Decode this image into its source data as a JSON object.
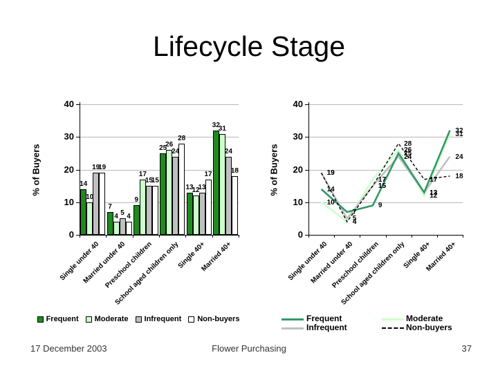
{
  "slide": {
    "title": "Lifecycle Stage"
  },
  "footer": {
    "date": "17 December 2003",
    "center": "Flower Purchasing",
    "page_number": "37"
  },
  "chart_data": [
    {
      "type": "bar",
      "title": "",
      "xlabel": "",
      "ylabel": "% of Buyers",
      "ylim": [
        0,
        40
      ],
      "yticks": [
        0,
        10,
        20,
        30,
        40
      ],
      "grid": true,
      "legend_position": "bottom",
      "categories": [
        "Single under 40",
        "Married under 40",
        "Preschool children",
        "School aged children only",
        "Single 40+",
        "Married 40+"
      ],
      "series": [
        {
          "name": "Frequent",
          "color": "#1f8a1f",
          "values": [
            14,
            7,
            9,
            25,
            13,
            32
          ]
        },
        {
          "name": "Moderate",
          "color": "#ccffcc",
          "values": [
            10,
            4,
            17,
            26,
            12,
            31
          ]
        },
        {
          "name": "Infrequent",
          "color": "#c0c0c0",
          "values": [
            19,
            5,
            15,
            24,
            13,
            24
          ]
        },
        {
          "name": "Non-buyers",
          "color": "#ffffff",
          "values": [
            19,
            4,
            15,
            28,
            17,
            18
          ]
        }
      ]
    },
    {
      "type": "line",
      "title": "",
      "xlabel": "",
      "ylabel": "% of Buyers",
      "ylim": [
        0,
        40
      ],
      "yticks": [
        0,
        10,
        20,
        30,
        40
      ],
      "grid": true,
      "legend_position": "bottom",
      "categories": [
        "Single under 40",
        "Married under 40",
        "Preschool children",
        "School aged children only",
        "Single 40+",
        "Married 40+"
      ],
      "series": [
        {
          "name": "Frequent",
          "color": "#339966",
          "dashed": false,
          "values": [
            14,
            7,
            9,
            25,
            13,
            32
          ]
        },
        {
          "name": "Moderate",
          "color": "#ccffcc",
          "dashed": false,
          "values": [
            10,
            4,
            17,
            26,
            12,
            31
          ]
        },
        {
          "name": "Infrequent",
          "color": "#c0c0c0",
          "dashed": false,
          "values": [
            19,
            5,
            15,
            24,
            13,
            24
          ]
        },
        {
          "name": "Non-buyers",
          "color": "#000000",
          "dashed": true,
          "values": [
            19,
            4,
            15,
            28,
            17,
            18
          ]
        }
      ]
    }
  ]
}
